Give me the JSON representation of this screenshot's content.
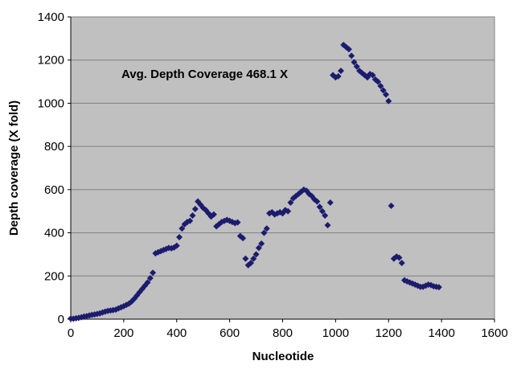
{
  "chart_data": {
    "type": "scatter",
    "title": "",
    "xlabel": "Nucleotide",
    "ylabel": "Depth coverage (X fold)",
    "xlim": [
      0,
      1600
    ],
    "ylim": [
      0,
      1400
    ],
    "x_ticks": [
      0,
      200,
      400,
      600,
      800,
      1000,
      1200,
      1400,
      1600
    ],
    "y_ticks": [
      0,
      200,
      400,
      600,
      800,
      1000,
      1200,
      1400
    ],
    "x_tick_labels": [
      "0",
      "200",
      "400",
      "600",
      "800",
      "1000",
      "1200",
      "1400",
      "1600"
    ],
    "y_tick_labels": [
      "0",
      "200",
      "400",
      "600",
      "800",
      "1000",
      "1200",
      "1400"
    ],
    "grid": "horizontal",
    "legend": "none",
    "annotation": "Avg. Depth Coverage 468.1 X",
    "colors": {
      "marker": "#1c1c6e",
      "plot_area": "#c0c0c0",
      "grid": "#808080",
      "background": "#ffffff"
    },
    "series": [
      {
        "marker": "diamond",
        "x": [
          0,
          10,
          20,
          30,
          40,
          50,
          60,
          70,
          80,
          90,
          100,
          110,
          120,
          130,
          140,
          150,
          160,
          170,
          180,
          190,
          200,
          210,
          220,
          230,
          240,
          250,
          260,
          270,
          280,
          290,
          300,
          310,
          320,
          330,
          340,
          350,
          360,
          370,
          380,
          390,
          400,
          410,
          420,
          430,
          440,
          450,
          460,
          470,
          480,
          490,
          500,
          510,
          520,
          530,
          540,
          550,
          560,
          570,
          580,
          590,
          600,
          610,
          620,
          630,
          640,
          650,
          660,
          670,
          680,
          690,
          700,
          710,
          720,
          730,
          740,
          750,
          760,
          770,
          780,
          790,
          800,
          810,
          820,
          830,
          840,
          850,
          860,
          870,
          880,
          890,
          900,
          910,
          920,
          930,
          940,
          950,
          960,
          970,
          980,
          990,
          1000,
          1010,
          1020,
          1030,
          1040,
          1050,
          1060,
          1070,
          1080,
          1090,
          1100,
          1110,
          1120,
          1130,
          1140,
          1150,
          1160,
          1170,
          1180,
          1190,
          1200,
          1210,
          1220,
          1230,
          1240,
          1250,
          1260,
          1270,
          1280,
          1290,
          1300,
          1310,
          1320,
          1330,
          1340,
          1350,
          1360,
          1370,
          1380,
          1390
        ],
        "y": [
          3,
          2,
          4,
          6,
          9,
          12,
          14,
          17,
          20,
          22,
          24,
          27,
          31,
          35,
          38,
          40,
          42,
          44,
          50,
          55,
          60,
          66,
          72,
          82,
          95,
          110,
          125,
          140,
          155,
          170,
          190,
          215,
          305,
          310,
          315,
          320,
          325,
          330,
          328,
          332,
          340,
          380,
          420,
          440,
          450,
          455,
          480,
          510,
          545,
          530,
          515,
          505,
          490,
          475,
          485,
          430,
          440,
          450,
          455,
          460,
          455,
          450,
          445,
          448,
          385,
          375,
          280,
          250,
          260,
          280,
          300,
          330,
          350,
          400,
          420,
          490,
          495,
          485,
          490,
          495,
          490,
          505,
          500,
          540,
          560,
          570,
          580,
          590,
          600,
          595,
          580,
          570,
          555,
          545,
          520,
          500,
          480,
          435,
          540,
          1130,
          1120,
          1125,
          1150,
          1270,
          1260,
          1250,
          1220,
          1190,
          1170,
          1150,
          1140,
          1130,
          1120,
          1135,
          1130,
          1110,
          1100,
          1080,
          1060,
          1040,
          1010,
          525,
          280,
          290,
          285,
          260,
          180,
          175,
          170,
          165,
          160,
          155,
          150,
          150,
          155,
          160,
          158,
          152,
          150,
          148
        ]
      }
    ]
  }
}
